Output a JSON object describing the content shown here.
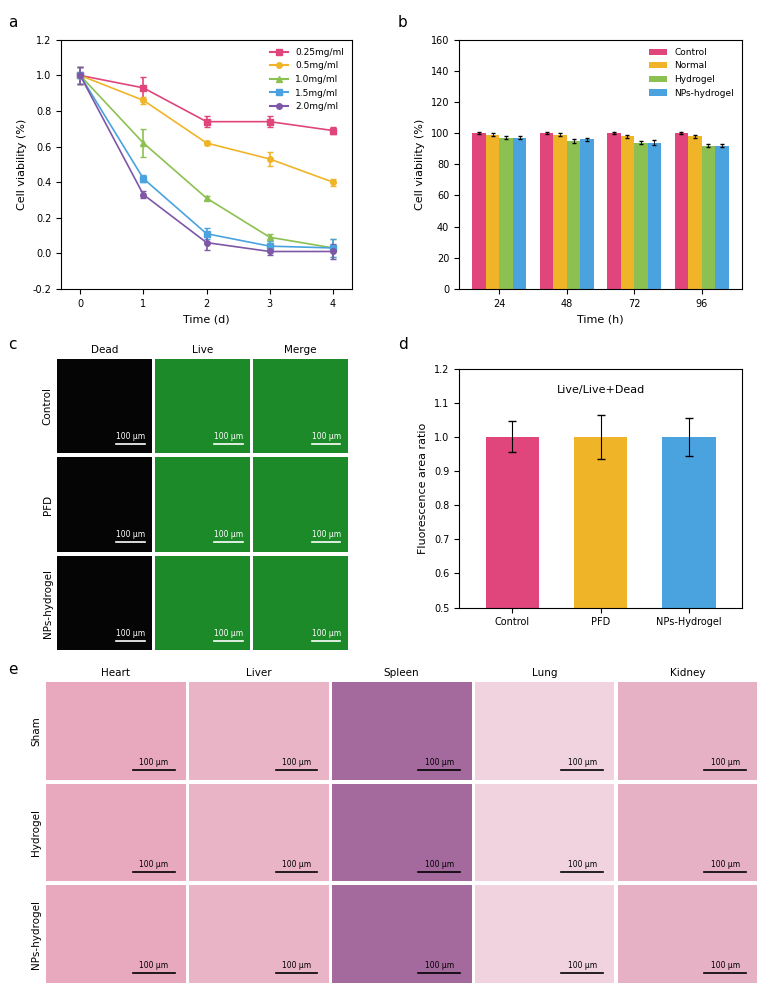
{
  "panel_labels": [
    "a",
    "b",
    "c",
    "d",
    "e"
  ],
  "chart_data": [
    {
      "type": "line",
      "xlabel": "Time (d)",
      "ylabel": "Cell viability (%)",
      "x": [
        0,
        1,
        2,
        3,
        4
      ],
      "xlim": [
        -0.3,
        4.3
      ],
      "xticks": [
        0,
        1,
        2,
        3,
        4
      ],
      "ylim": [
        -0.2,
        1.2
      ],
      "yticks": [
        {
          "value": -0.2,
          "label": "-0.2"
        },
        {
          "value": 0.0,
          "label": "0.0"
        },
        {
          "value": 0.2,
          "label": "0.2"
        },
        {
          "value": 0.4,
          "label": "0.4"
        },
        {
          "value": 0.6,
          "label": "0.6"
        },
        {
          "value": 0.8,
          "label": "0.8"
        },
        {
          "value": 1.0,
          "label": "1.0"
        },
        {
          "value": 1.2,
          "label": "1.2"
        }
      ],
      "legend": "upper right",
      "grid": false,
      "series": [
        {
          "name": "0.25mg/ml",
          "color": "#e0457b",
          "marker": "square",
          "values": [
            1.0,
            0.93,
            0.74,
            0.74,
            0.69
          ],
          "errors": [
            0.05,
            0.06,
            0.03,
            0.03,
            0.02
          ]
        },
        {
          "name": "0.5mg/ml",
          "color": "#f0b429",
          "marker": "circle",
          "values": [
            1.0,
            0.86,
            0.62,
            0.53,
            0.4
          ],
          "errors": [
            0.05,
            0.02,
            0.01,
            0.04,
            0.02
          ]
        },
        {
          "name": "1.0mg/ml",
          "color": "#8cc152",
          "marker": "triangle",
          "values": [
            1.0,
            0.62,
            0.31,
            0.09,
            0.03
          ],
          "errors": [
            0.05,
            0.08,
            0.01,
            0.02,
            0.05
          ]
        },
        {
          "name": "1.5mg/ml",
          "color": "#4aa3df",
          "marker": "square",
          "values": [
            1.0,
            0.42,
            0.11,
            0.04,
            0.03
          ],
          "errors": [
            0.05,
            0.02,
            0.03,
            0.03,
            0.05
          ]
        },
        {
          "name": "2.0mg/ml",
          "color": "#7e57a6",
          "marker": "circle",
          "values": [
            1.0,
            0.33,
            0.06,
            0.01,
            0.01
          ],
          "errors": [
            0.05,
            0.02,
            0.04,
            0.02,
            0.04
          ]
        }
      ]
    },
    {
      "type": "bar",
      "xlabel": "Time (h)",
      "ylabel": "Cell viability (%)",
      "categories": [
        "24",
        "48",
        "72",
        "96"
      ],
      "ylim": [
        0,
        160
      ],
      "yticks": [
        0,
        20,
        40,
        60,
        80,
        100,
        120,
        140,
        160
      ],
      "legend": "upper right",
      "grid": false,
      "series": [
        {
          "name": "Control",
          "color": "#e0457b",
          "values": [
            100,
            100,
            100,
            100
          ],
          "errors": [
            0.5,
            0.5,
            0.5,
            0.5
          ]
        },
        {
          "name": "Normal",
          "color": "#f0b429",
          "values": [
            99,
            99,
            98,
            98
          ],
          "errors": [
            1,
            1,
            1,
            1
          ]
        },
        {
          "name": "Hydrogel",
          "color": "#8cc152",
          "values": [
            97,
            95,
            94,
            92
          ],
          "errors": [
            1,
            1,
            1,
            1
          ]
        },
        {
          "name": "NPs-hydrogel",
          "color": "#4aa3df",
          "values": [
            97,
            96,
            94,
            92
          ],
          "errors": [
            1,
            1,
            1.5,
            1
          ]
        }
      ]
    },
    {
      "type": "bar",
      "title": "Live/Live+Dead",
      "ylabel": "Fluorescence area ratio",
      "categories": [
        "Control",
        "PFD",
        "NPs-Hydrogel"
      ],
      "values": [
        1.0,
        1.0,
        1.0
      ],
      "errors": [
        0.045,
        0.065,
        0.055
      ],
      "colors": [
        "#e0457b",
        "#f0b429",
        "#4aa3df"
      ],
      "ylim": [
        0.5,
        1.2
      ],
      "yticks": [
        0.5,
        0.6,
        0.7,
        0.8,
        0.9,
        {
          "value": 1.0,
          "label": "1.0"
        },
        1.1,
        1.2
      ],
      "grid": false
    }
  ],
  "image_panels": [
    {
      "columns": [
        "Dead",
        "Live",
        "Merge"
      ],
      "rows": [
        "Control",
        "PFD",
        "NPs-hydrogel"
      ],
      "scale_bar": "100 µm"
    },
    {
      "columns": [
        "Heart",
        "Liver",
        "Spleen",
        "Lung",
        "Kidney"
      ],
      "rows": [
        "Sham",
        "Hydrogel",
        "NPs-hydrogel"
      ],
      "scale_bar": "100 µm"
    }
  ]
}
